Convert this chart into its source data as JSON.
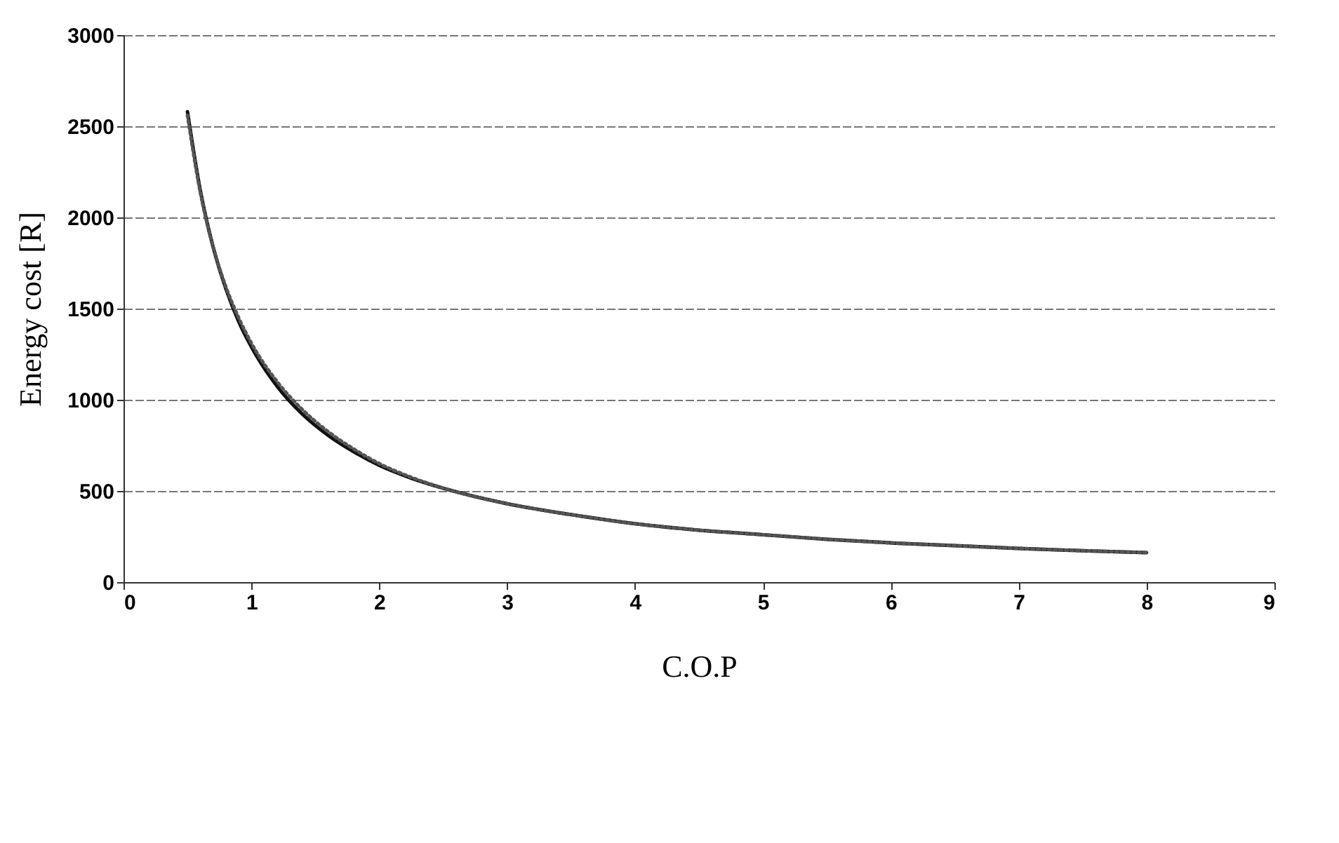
{
  "chart_data": {
    "type": "line",
    "xlabel": "C.O.P",
    "ylabel": "Energy cost [R]",
    "xlim": [
      0,
      9
    ],
    "xticks": [
      0,
      1,
      2,
      3,
      4,
      5,
      6,
      7,
      8,
      9
    ],
    "ylim": [
      0,
      3000
    ],
    "yticks": [
      0,
      500,
      1000,
      1500,
      2000,
      2500,
      3000
    ],
    "grid": "y",
    "legend": false,
    "series": [
      {
        "color": "#111111",
        "line_style": "solid",
        "x": [
          0.5,
          0.6,
          0.7,
          0.8,
          0.9,
          1,
          1.2,
          1.4,
          1.6,
          1.8,
          2,
          2.25,
          2.5,
          3,
          3.5,
          4,
          4.5,
          5,
          5.5,
          6,
          6.5,
          7,
          7.5,
          8
        ],
        "values": [
          2580,
          2150,
          1840,
          1610,
          1430,
          1290,
          1075,
          920,
          805,
          715,
          640,
          570,
          515,
          430,
          370,
          320,
          285,
          260,
          235,
          215,
          200,
          185,
          172,
          162
        ]
      },
      {
        "color": "#555555",
        "line_style": "dotted",
        "x": [
          0.5,
          0.6,
          0.7,
          0.8,
          0.9,
          1,
          1.2,
          1.4,
          1.6,
          1.8,
          2,
          2.25,
          2.5,
          3,
          3.5,
          4,
          4.5,
          5,
          5.5,
          6,
          6.5,
          7,
          7.5,
          8
        ],
        "values": [
          2560,
          2140,
          1840,
          1620,
          1450,
          1310,
          1100,
          945,
          825,
          730,
          650,
          575,
          515,
          430,
          370,
          320,
          285,
          260,
          235,
          215,
          200,
          185,
          172,
          162
        ]
      }
    ]
  }
}
